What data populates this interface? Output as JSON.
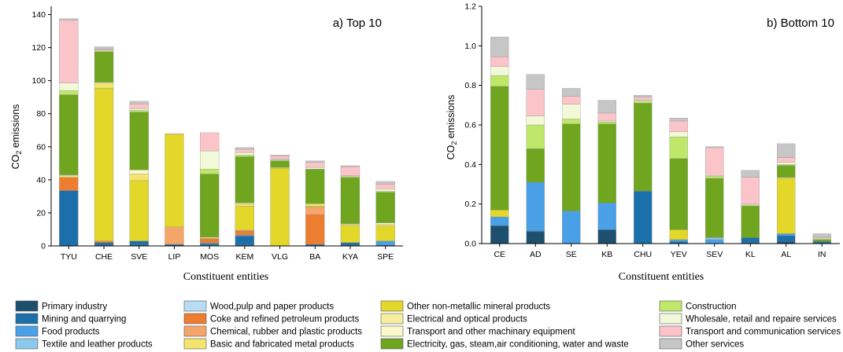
{
  "chart_data": [
    {
      "type": "bar",
      "stacked": true,
      "title": "a) Top 10",
      "xlabel": "Constituent entities",
      "ylabel_main": "CO",
      "ylabel_sub": "2",
      "ylabel_tail": " emissions",
      "ylim": [
        0,
        145
      ],
      "yticks": [
        "0",
        "20",
        "40",
        "60",
        "80",
        "100",
        "120",
        "140"
      ],
      "ytick_values": [
        0,
        20,
        40,
        60,
        80,
        100,
        120,
        140
      ],
      "grid": false,
      "categories": [
        "TYU",
        "CHE",
        "SVE",
        "LIP",
        "MOS",
        "KEM",
        "VLG",
        "BA",
        "KYA",
        "SPE"
      ],
      "series": [
        {
          "name": "Primary industry",
          "values": [
            0,
            0.5,
            0.5,
            0.5,
            0.3,
            0.5,
            0,
            0.5,
            0.5,
            0
          ]
        },
        {
          "name": "Mining and quarrying",
          "values": [
            33.5,
            1.5,
            2.5,
            0.5,
            1,
            5.5,
            0,
            0.5,
            1.5,
            0.5
          ]
        },
        {
          "name": "Food products",
          "values": [
            0,
            0,
            0,
            0,
            0.5,
            0.5,
            0,
            0,
            0,
            2.5
          ]
        },
        {
          "name": "Textile and leather products",
          "values": [
            0,
            0,
            0,
            0,
            0,
            0,
            0,
            0,
            0,
            0
          ]
        },
        {
          "name": "Wood,pulp and paper products",
          "values": [
            0,
            0,
            0,
            0,
            0,
            0,
            0,
            0,
            0,
            0
          ]
        },
        {
          "name": "Coke and refined petroleum products",
          "values": [
            8,
            1,
            0,
            0,
            2.5,
            2.5,
            0,
            18,
            0,
            0
          ]
        },
        {
          "name": "Chemical, rubber and plastic products",
          "values": [
            0,
            0,
            0,
            10.5,
            0,
            0.5,
            0,
            4.5,
            0,
            0
          ]
        },
        {
          "name": "Other non-metallic mineral products",
          "values": [
            0,
            92.5,
            36.5,
            56,
            0.5,
            14.5,
            47,
            0.5,
            10.5,
            9
          ]
        },
        {
          "name": "Electrical and optical products",
          "values": [
            0,
            0,
            0,
            0,
            0,
            0,
            0,
            0,
            0,
            0
          ]
        },
        {
          "name": "Basic and fabricated metal products",
          "values": [
            1,
            3,
            4,
            0.5,
            0.5,
            1.5,
            0.5,
            1.5,
            0.5,
            1
          ]
        },
        {
          "name": "Transport and other machinary equipment",
          "values": [
            0.5,
            0.5,
            2.5,
            0,
            0.2,
            0.5,
            0,
            0,
            0.5,
            1
          ]
        },
        {
          "name": "Electricity, gas, steam,air conditioning, water and waste",
          "values": [
            48.5,
            18.5,
            35,
            0,
            38,
            28,
            4,
            21,
            28,
            18.5
          ]
        },
        {
          "name": "Construction",
          "values": [
            2.5,
            0.5,
            1,
            0,
            3,
            1,
            0.5,
            0,
            0.5,
            0.5
          ]
        },
        {
          "name": "Wholesale, retail and repaire services",
          "values": [
            4.5,
            0.5,
            1,
            0,
            11,
            1.5,
            0.5,
            1,
            0.5,
            1.5
          ]
        },
        {
          "name": "Transport and communication services",
          "values": [
            38,
            0.5,
            3,
            0,
            11,
            2,
            2,
            3,
            5.5,
            3
          ]
        },
        {
          "name": "Other services",
          "values": [
            1,
            1.5,
            1.5,
            0,
            0,
            1,
            0.5,
            1,
            0.5,
            1.5
          ]
        }
      ]
    },
    {
      "type": "bar",
      "stacked": true,
      "title": "b) Bottom 10",
      "xlabel": "Constituent entities",
      "ylabel_main": "CO",
      "ylabel_sub": "2",
      "ylabel_tail": " emissions",
      "ylim": [
        0,
        1.2
      ],
      "yticks": [
        "0.0",
        "0.2",
        "0.4",
        "0.6",
        "0.8",
        "1.0",
        "1.2"
      ],
      "ytick_values": [
        0,
        0.2,
        0.4,
        0.6,
        0.8,
        1.0,
        1.2
      ],
      "grid": false,
      "categories": [
        "CE",
        "AD",
        "SE",
        "KB",
        "CHU",
        "YEV",
        "SEV",
        "KL",
        "AL",
        "IN"
      ],
      "series": [
        {
          "name": "Primary industry",
          "values": [
            0.09,
            0.06,
            0,
            0.07,
            0,
            0,
            0,
            0.005,
            0.01,
            0
          ]
        },
        {
          "name": "Mining and quarrying",
          "values": [
            0,
            0.005,
            0,
            0,
            0.265,
            0.01,
            0,
            0.025,
            0.03,
            0.01
          ]
        },
        {
          "name": "Food products",
          "values": [
            0.045,
            0.245,
            0.165,
            0.135,
            0,
            0.01,
            0.02,
            0,
            0.01,
            0
          ]
        },
        {
          "name": "Textile and leather products",
          "values": [
            0,
            0,
            0,
            0,
            0,
            0,
            0.01,
            0,
            0,
            0
          ]
        },
        {
          "name": "Wood,pulp and paper products",
          "values": [
            0,
            0,
            0,
            0,
            0,
            0,
            0,
            0,
            0,
            0
          ]
        },
        {
          "name": "Coke and refined petroleum products",
          "values": [
            0,
            0,
            0,
            0,
            0,
            0,
            0,
            0,
            0,
            0
          ]
        },
        {
          "name": "Chemical, rubber and plastic products",
          "values": [
            0,
            0,
            0,
            0,
            0,
            0,
            0,
            0,
            0,
            0
          ]
        },
        {
          "name": "Other non-metallic mineral products",
          "values": [
            0.035,
            0,
            0,
            0,
            0,
            0.05,
            0,
            0,
            0.28,
            0
          ]
        },
        {
          "name": "Electrical and optical products",
          "values": [
            0,
            0,
            0,
            0,
            0,
            0,
            0,
            0,
            0,
            0
          ]
        },
        {
          "name": "Basic and fabricated metal products",
          "values": [
            0,
            0,
            0,
            0,
            0,
            0,
            0,
            0,
            0.005,
            0
          ]
        },
        {
          "name": "Transport and other machinary equipment",
          "values": [
            0,
            0,
            0,
            0,
            0,
            0,
            0,
            0,
            0,
            0
          ]
        },
        {
          "name": "Electricity, gas, steam,air conditioning, water and waste",
          "values": [
            0.625,
            0.17,
            0.44,
            0.4,
            0.445,
            0.36,
            0.3,
            0.16,
            0.06,
            0.01
          ]
        },
        {
          "name": "Construction",
          "values": [
            0.055,
            0.12,
            0.025,
            0.01,
            0.01,
            0.11,
            0.01,
            0.005,
            0.005,
            0.005
          ]
        },
        {
          "name": "Wholesale, retail and repaire services",
          "values": [
            0.045,
            0.045,
            0.075,
            0.005,
            0.005,
            0.025,
            0.005,
            0.005,
            0.01,
            0.005
          ]
        },
        {
          "name": "Transport and communication services",
          "values": [
            0.05,
            0.135,
            0.04,
            0.04,
            0.015,
            0.055,
            0.14,
            0.135,
            0.025,
            0.005
          ]
        },
        {
          "name": "Other services",
          "values": [
            0.1,
            0.075,
            0.04,
            0.065,
            0.01,
            0.015,
            0.005,
            0.035,
            0.07,
            0.015
          ]
        }
      ]
    }
  ],
  "legend": {
    "items": [
      {
        "name": "Primary industry",
        "color": "#1d4f6e"
      },
      {
        "name": "Mining and quarrying",
        "color": "#1b6fab"
      },
      {
        "name": "Food products",
        "color": "#4aa0e6"
      },
      {
        "name": "Textile and leather products",
        "color": "#8cc8ee"
      },
      {
        "name": "Wood,pulp and paper products",
        "color": "#b7dcf4"
      },
      {
        "name": "Coke and refined petroleum products",
        "color": "#ed7d31"
      },
      {
        "name": "Chemical, rubber and plastic products",
        "color": "#f4a56a"
      },
      {
        "name": "Basic and fabricated metal products",
        "color": "#f2e46c"
      },
      {
        "name": "Other non-metallic mineral products",
        "color": "#e3d72a"
      },
      {
        "name": "Electrical and optical products",
        "color": "#f5ee9c"
      },
      {
        "name": "Transport and other machinary equipment",
        "color": "#fbf8cb"
      },
      {
        "name": "Electricity, gas, steam,air conditioning, water and waste",
        "color": "#6fa51f"
      },
      {
        "name": "Construction",
        "color": "#bfe86a"
      },
      {
        "name": "Wholesale, retail and repaire services",
        "color": "#f1f9d9"
      },
      {
        "name": "Transport and communication services",
        "color": "#fbc4c8"
      },
      {
        "name": "Other services",
        "color": "#c6c6c6"
      }
    ]
  }
}
